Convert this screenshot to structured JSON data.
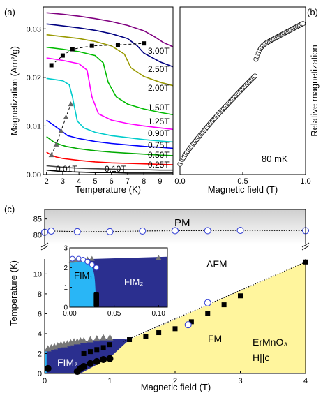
{
  "chart_data": [
    {
      "panel": "a",
      "type": "line",
      "panel_label": "(a)",
      "xlabel": "Temperature (K)",
      "ylabel": "Magnetization (Am²/g)",
      "xlim": [
        1.8,
        9.8
      ],
      "ylim": [
        0,
        0.0345
      ],
      "xticks": [
        2,
        3,
        4,
        5,
        6,
        7,
        8,
        9
      ],
      "yticks": [
        0.0,
        0.01,
        0.02,
        0.03
      ],
      "ytick_labels": [
        "0.00",
        "0.01",
        "0.02",
        "0.03"
      ],
      "series": [
        {
          "name": "0.01T",
          "color": "#000000",
          "x": [
            2,
            3,
            4,
            5,
            6,
            7,
            8,
            9,
            9.8
          ],
          "y": [
            0.0009,
            0.0006,
            0.0005,
            0.0004,
            0.0004,
            0.0003,
            0.0003,
            0.0003,
            0.0003
          ]
        },
        {
          "name": "0.10T",
          "color": "#444444",
          "x": [
            2,
            3,
            4,
            5,
            6,
            7,
            8,
            9,
            9.8
          ],
          "y": [
            0.0018,
            0.0015,
            0.0013,
            0.0012,
            0.0011,
            0.001,
            0.001,
            0.0009,
            0.0009
          ]
        },
        {
          "name": "0.25T",
          "color": "#ff0000",
          "x": [
            2,
            2.3,
            2.6,
            3,
            4,
            5,
            6,
            7,
            8,
            9,
            9.8
          ],
          "y": [
            0.0046,
            0.004,
            0.0036,
            0.0033,
            0.0029,
            0.0026,
            0.0024,
            0.0023,
            0.0022,
            0.0021,
            0.002
          ]
        },
        {
          "name": "0.50T",
          "color": "#00aa00",
          "x": [
            2,
            2.4,
            2.8,
            3.2,
            4,
            5,
            6,
            7,
            8,
            9,
            9.8
          ],
          "y": [
            0.0078,
            0.0068,
            0.0062,
            0.0058,
            0.0053,
            0.0049,
            0.0046,
            0.0044,
            0.0042,
            0.004,
            0.0039
          ]
        },
        {
          "name": "0.75T",
          "color": "#0000ff",
          "x": [
            2,
            2.5,
            3.0,
            3.3,
            4,
            5,
            6,
            7,
            8,
            9,
            9.8
          ],
          "y": [
            0.0112,
            0.01,
            0.0088,
            0.008,
            0.0074,
            0.0068,
            0.0064,
            0.0061,
            0.0058,
            0.0056,
            0.0054
          ]
        },
        {
          "name": "0.90T",
          "color": "#00cccc",
          "x": [
            2,
            3,
            3.4,
            3.6,
            3.9,
            4.3,
            5,
            6,
            7,
            8,
            9,
            9.8
          ],
          "y": [
            0.0198,
            0.0193,
            0.0185,
            0.016,
            0.011,
            0.0096,
            0.0087,
            0.008,
            0.0076,
            0.0072,
            0.0069,
            0.0067
          ]
        },
        {
          "name": "1.25T",
          "color": "#ff00ff",
          "x": [
            2,
            3,
            4,
            4.5,
            4.8,
            5.2,
            6,
            7,
            8,
            9,
            9.8
          ],
          "y": [
            0.024,
            0.0235,
            0.0228,
            0.0215,
            0.016,
            0.0125,
            0.0112,
            0.0105,
            0.01,
            0.0096,
            0.0093
          ]
        },
        {
          "name": "1.50T",
          "color": "#00bb00",
          "x": [
            2,
            3,
            4,
            5,
            5.5,
            5.8,
            6.3,
            7,
            8,
            9,
            9.8
          ],
          "y": [
            0.0262,
            0.0258,
            0.0253,
            0.0245,
            0.023,
            0.019,
            0.016,
            0.0145,
            0.0135,
            0.0128,
            0.0123
          ]
        },
        {
          "name": "2.00T",
          "color": "#999900",
          "x": [
            2,
            3,
            4,
            5,
            6,
            6.8,
            7.2,
            8,
            9,
            9.8
          ],
          "y": [
            0.0288,
            0.0284,
            0.028,
            0.0274,
            0.0265,
            0.0248,
            0.022,
            0.0202,
            0.019,
            0.0183
          ]
        },
        {
          "name": "2.50T",
          "color": "#000080",
          "x": [
            2,
            3,
            4,
            5,
            6,
            7,
            7.6,
            8,
            9,
            9.8
          ],
          "y": [
            0.031,
            0.0306,
            0.0302,
            0.0297,
            0.029,
            0.028,
            0.0265,
            0.025,
            0.0232,
            0.0222
          ]
        },
        {
          "name": "3.00T",
          "color": "#800080",
          "x": [
            2,
            3,
            4,
            5,
            6,
            7,
            8,
            8.6,
            9.2,
            9.8
          ],
          "y": [
            0.0333,
            0.033,
            0.0326,
            0.0321,
            0.0315,
            0.0307,
            0.0296,
            0.0285,
            0.0272,
            0.0263
          ]
        }
      ],
      "transition_squares": {
        "x": [
          2.3,
          3.0,
          3.6,
          4.8,
          6.4,
          8.0
        ],
        "y": [
          0.0225,
          0.0245,
          0.0258,
          0.0265,
          0.0267,
          0.027
        ]
      },
      "transition_triangles": {
        "x": [
          2.3,
          2.6,
          2.9,
          3.2,
          3.5
        ],
        "y": [
          0.004,
          0.0062,
          0.009,
          0.0118,
          0.0145
        ]
      },
      "annotations": [
        "3.00T",
        "2.50T",
        "2.00T",
        "1.50T",
        "1.25T",
        "0.90T",
        "0.75T",
        "0.50T",
        "0.25T",
        "0.10T",
        "0.01T"
      ]
    },
    {
      "panel": "b",
      "type": "scatter",
      "panel_label": "(b)",
      "xlabel": "Magnetic field (T)",
      "ylabel": "Relative magnetization",
      "xlim": [
        0,
        1.0
      ],
      "xticks": [
        0.0,
        0.5,
        1.0
      ],
      "xtick_labels": [
        "0.0",
        "0.5",
        "1.0"
      ],
      "annotation": "80 mK",
      "marker": "open-circle"
    },
    {
      "panel": "c",
      "type": "scatter",
      "panel_label": "(c)",
      "xlabel": "Magnetic field (T)",
      "ylabel": "Temperature (K)",
      "xlim": [
        0,
        4
      ],
      "ylim_lower": [
        0,
        11.5
      ],
      "ylim_upper": [
        77,
        88
      ],
      "xticks": [
        0,
        1,
        2,
        3,
        4
      ],
      "yticks_lower": [
        0,
        2,
        4,
        6,
        8,
        10
      ],
      "yticks_upper": [
        80,
        85
      ],
      "regions": {
        "pm": "PM",
        "afm": "AFM",
        "fm": "FM",
        "fim2": "FIM₂",
        "compound": "ErMnO₃",
        "orientation": "H||c"
      },
      "pm_circles": {
        "x": [
          0.0,
          0.1,
          0.5,
          1.0,
          1.5,
          2.0,
          2.5,
          3.0,
          4.0
        ],
        "y": [
          80.8,
          81.2,
          81.0,
          81.0,
          81.2,
          81.3,
          81.3,
          81.4,
          81.3
        ]
      },
      "fm_squares": {
        "x": [
          1.3,
          1.55,
          1.75,
          2.0,
          2.25,
          2.5,
          2.75,
          3.0,
          4.0
        ],
        "y": [
          3.4,
          3.7,
          4.1,
          4.5,
          5.2,
          6.0,
          6.9,
          7.8,
          11.2
        ]
      },
      "afm_circles": {
        "x": [
          2.2,
          2.5
        ],
        "y": [
          4.9,
          7.1
        ]
      },
      "gray_triangles": {
        "x": [
          0.05,
          0.1,
          0.15,
          0.2,
          0.25,
          0.3,
          0.35,
          0.4,
          0.45,
          0.5,
          0.55,
          0.6,
          0.7,
          0.8,
          0.9,
          1.0
        ],
        "y": [
          2.5,
          2.6,
          2.7,
          2.8,
          2.9,
          2.9,
          3.0,
          3.1,
          3.2,
          3.2,
          3.3,
          3.3,
          3.4,
          3.5,
          3.6,
          3.6
        ]
      },
      "black_circles": {
        "x": [
          0.05,
          0.5,
          0.55,
          0.6,
          0.7,
          0.8,
          0.9,
          1.0
        ],
        "y": [
          0.5,
          0.2,
          0.5,
          0.7,
          1.0,
          1.2,
          1.4,
          1.5
        ]
      },
      "black_squares_fim": {
        "x": [
          0.6,
          0.7,
          0.8,
          0.9,
          1.0
        ],
        "y": [
          2.0,
          2.2,
          2.4,
          2.6,
          2.9
        ]
      },
      "inset": {
        "xlim": [
          0,
          0.11
        ],
        "ylim": [
          0,
          3
        ],
        "xticks": [
          0.0,
          0.05,
          0.1
        ],
        "xtick_labels": [
          "0.00",
          "0.05",
          "0.10"
        ],
        "yticks": [
          0,
          1,
          2,
          3
        ],
        "labels": {
          "fim1": "FIM₁",
          "fim2": "FIM₂"
        },
        "triangles": {
          "x": [
            0.002,
            0.006,
            0.01,
            0.015,
            0.02,
            0.025,
            0.1
          ],
          "y": [
            2.35,
            2.38,
            2.4,
            2.4,
            2.42,
            2.45,
            2.5
          ]
        },
        "circles": {
          "x": [
            0.003,
            0.01,
            0.015,
            0.02,
            0.025,
            0.03
          ],
          "y": [
            2.45,
            2.45,
            2.4,
            2.3,
            2.15,
            2.0
          ]
        },
        "black_blob": {
          "x": [
            0.03,
            0.03
          ],
          "y": [
            0.0,
            0.7
          ]
        }
      }
    }
  ]
}
